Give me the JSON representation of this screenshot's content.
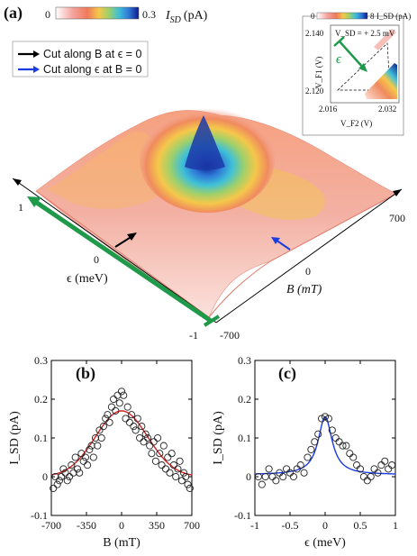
{
  "panel_a": {
    "label": "(a)",
    "colorbar": {
      "min": "0",
      "max": "0.3",
      "unit_label": "I_SD (pA)",
      "label_main": "I",
      "label_sub": "SD",
      "label_unit": "(pA)"
    },
    "legend": [
      {
        "text": "Cut along B at ϵ = 0",
        "color": "#000000"
      },
      {
        "text": "Cut along ϵ at B = 0",
        "color": "#1a3ce0"
      }
    ],
    "axes": {
      "eps_label": "ϵ (meV)",
      "eps_ticks": [
        "1",
        "0",
        "-1"
      ],
      "b_label": "B (mT)",
      "b_ticks": [
        "700",
        "0",
        "-700"
      ]
    },
    "inset": {
      "colorbar_min": "0",
      "colorbar_max": "8",
      "colorbar_unit": "I_SD (pA)",
      "annotation": "V_SD = + 2.5 mV",
      "y_label": "V_F1 (V)",
      "y_ticks": [
        "2.140",
        "2.120"
      ],
      "x_label": "V_F2 (V)",
      "x_ticks": [
        "2.016",
        "2.032"
      ],
      "eps_arrow_label": "ϵ"
    }
  },
  "chart_data": [
    {
      "type": "scatter",
      "panel": "(b)",
      "xlabel": "B (mT)",
      "ylabel": "I_SD (pA)",
      "xlim": [
        -700,
        700
      ],
      "ylim": [
        -0.1,
        0.3
      ],
      "xticks": [
        "-700",
        "-350",
        "0",
        "350",
        "700"
      ],
      "yticks": [
        "-0.1",
        "0",
        "0.1",
        "0.2",
        "0.3"
      ],
      "fit_color": "#d42020",
      "series": [
        {
          "kind": "points",
          "x": [
            -680,
            -660,
            -640,
            -620,
            -600,
            -580,
            -560,
            -540,
            -520,
            -500,
            -480,
            -460,
            -440,
            -420,
            -400,
            -380,
            -360,
            -340,
            -320,
            -300,
            -280,
            -260,
            -240,
            -220,
            -200,
            -180,
            -160,
            -140,
            -120,
            -100,
            -80,
            -60,
            -40,
            -20,
            0,
            20,
            40,
            60,
            80,
            100,
            120,
            140,
            160,
            180,
            200,
            220,
            240,
            260,
            280,
            300,
            320,
            340,
            360,
            380,
            400,
            420,
            440,
            460,
            480,
            500,
            520,
            540,
            560,
            580,
            600,
            620,
            640,
            660,
            680
          ],
          "y": [
            -0.03,
            0.0,
            -0.02,
            -0.01,
            0.0,
            0.02,
            0.01,
            -0.01,
            0.0,
            0.03,
            0.01,
            0.05,
            0.02,
            0.01,
            0.06,
            0.04,
            0.05,
            0.03,
            0.07,
            0.08,
            0.05,
            0.1,
            0.08,
            0.12,
            0.1,
            0.13,
            0.15,
            0.16,
            0.14,
            0.18,
            0.2,
            0.17,
            0.21,
            0.19,
            0.22,
            0.21,
            0.15,
            0.18,
            0.14,
            0.16,
            0.13,
            0.12,
            0.15,
            0.1,
            0.13,
            0.09,
            0.11,
            0.1,
            0.08,
            0.06,
            0.09,
            0.04,
            0.1,
            0.06,
            0.03,
            0.08,
            0.02,
            0.05,
            0.01,
            0.06,
            0.03,
            0.0,
            0.02,
            0.04,
            -0.01,
            0.01,
            0.0,
            -0.02,
            -0.03
          ]
        },
        {
          "kind": "fit",
          "model": "gaussian",
          "peak": 0.17,
          "baseline": 0.0,
          "width_mT": 260
        }
      ]
    },
    {
      "type": "scatter",
      "panel": "(c)",
      "xlabel": "ϵ (meV)",
      "ylabel": "I_SD (pA)",
      "xlim": [
        -1,
        1
      ],
      "ylim": [
        -0.1,
        0.3
      ],
      "xticks": [
        "-1",
        "-0.5",
        "0",
        "0.5",
        "1"
      ],
      "yticks": [
        "-0.1",
        "0",
        "0.1",
        "0.2",
        "0.3"
      ],
      "fit_color": "#1a3ce0",
      "series": [
        {
          "kind": "points",
          "x": [
            -0.95,
            -0.9,
            -0.85,
            -0.8,
            -0.75,
            -0.7,
            -0.65,
            -0.6,
            -0.55,
            -0.5,
            -0.45,
            -0.4,
            -0.35,
            -0.3,
            -0.25,
            -0.2,
            -0.15,
            -0.1,
            -0.05,
            0.0,
            0.05,
            0.1,
            0.15,
            0.2,
            0.25,
            0.3,
            0.35,
            0.4,
            0.45,
            0.5,
            0.55,
            0.6,
            0.65,
            0.7,
            0.75,
            0.8,
            0.85,
            0.9,
            0.95
          ],
          "y": [
            0.0,
            -0.02,
            0.0,
            0.02,
            0.0,
            -0.01,
            0.01,
            0.0,
            0.02,
            0.01,
            0.0,
            0.02,
            0.03,
            0.01,
            0.05,
            0.07,
            0.09,
            0.11,
            0.15,
            0.155,
            0.15,
            0.12,
            0.1,
            0.09,
            0.08,
            0.08,
            0.06,
            0.05,
            0.03,
            0.02,
            0.0,
            -0.01,
            0.0,
            0.02,
            0.01,
            0.03,
            0.04,
            0.02,
            0.03
          ]
        },
        {
          "kind": "fit",
          "model": "lorentzian",
          "peak": 0.15,
          "baseline": 0.005,
          "hwhm": 0.12
        }
      ]
    }
  ]
}
